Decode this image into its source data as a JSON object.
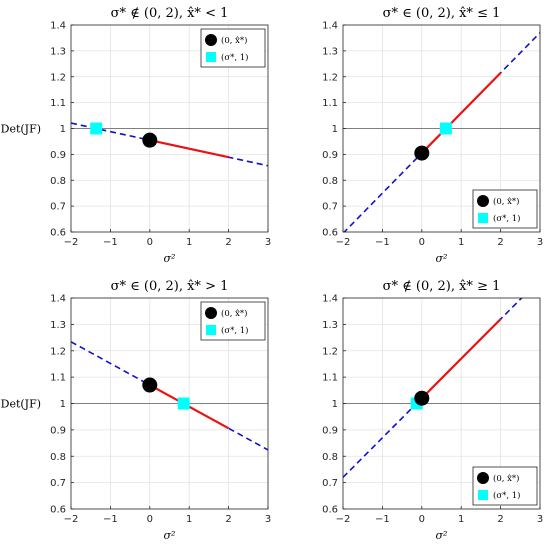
{
  "chart_data": [
    {
      "type": "line",
      "title": "σ* ∉ (0, 2),  x̂* < 1",
      "xlabel": "σ²",
      "ylabel": "Det(JF)",
      "xlim": [
        -2,
        3
      ],
      "ylim": [
        0.6,
        1.4
      ],
      "xticks": [
        -2,
        -1,
        0,
        1,
        2,
        3
      ],
      "yticks": [
        0.6,
        0.7,
        0.8,
        0.9,
        1,
        1.1,
        1.2,
        1.3,
        1.4
      ],
      "grid": true,
      "reference_line_y": 1,
      "line": {
        "intercept": 0.955,
        "slope": -0.033
      },
      "dashed_range": [
        -2,
        3
      ],
      "solid_range": [
        0,
        2
      ],
      "point_circle": {
        "x": 0,
        "y": 0.955
      },
      "point_square": {
        "x": -1.36,
        "y": 1.0
      },
      "legend_position": "top-right",
      "legend": [
        "(0, x̂*)",
        "(σ*, 1)"
      ]
    },
    {
      "type": "line",
      "title": "σ* ∈ (0, 2),  x̂* ≤ 1",
      "xlabel": "σ²",
      "ylabel": "",
      "xlim": [
        -2,
        3
      ],
      "ylim": [
        0.6,
        1.4
      ],
      "xticks": [
        -2,
        -1,
        0,
        1,
        2,
        3
      ],
      "yticks": [
        0.6,
        0.7,
        0.8,
        0.9,
        1,
        1.1,
        1.2,
        1.3,
        1.4
      ],
      "grid": true,
      "reference_line_y": 1,
      "line": {
        "intercept": 0.905,
        "slope": 0.155
      },
      "dashed_range": [
        -2,
        3
      ],
      "solid_range": [
        0,
        2
      ],
      "point_circle": {
        "x": 0,
        "y": 0.905
      },
      "point_square": {
        "x": 0.61,
        "y": 1.0
      },
      "legend_position": "bottom-right",
      "legend": [
        "(0, x̂*)",
        "(σ*, 1)"
      ]
    },
    {
      "type": "line",
      "title": "σ* ∈ (0, 2),  x̂* > 1",
      "xlabel": "σ²",
      "ylabel": "Det(JF)",
      "xlim": [
        -2,
        3
      ],
      "ylim": [
        0.6,
        1.4
      ],
      "xticks": [
        -2,
        -1,
        0,
        1,
        2,
        3
      ],
      "yticks": [
        0.6,
        0.7,
        0.8,
        0.9,
        1,
        1.1,
        1.2,
        1.3,
        1.4
      ],
      "grid": true,
      "reference_line_y": 1,
      "line": {
        "intercept": 1.07,
        "slope": -0.082
      },
      "dashed_range": [
        -2,
        3
      ],
      "solid_range": [
        0,
        2
      ],
      "point_circle": {
        "x": 0,
        "y": 1.07
      },
      "point_square": {
        "x": 0.86,
        "y": 1.0
      },
      "legend_position": "top-right",
      "legend": [
        "(0, x̂*)",
        "(σ*, 1)"
      ]
    },
    {
      "type": "line",
      "title": "σ* ∉ (0, 2),  x̂* ≥ 1",
      "xlabel": "σ²",
      "ylabel": "",
      "xlim": [
        -2,
        3
      ],
      "ylim": [
        0.6,
        1.4
      ],
      "xticks": [
        -2,
        -1,
        0,
        1,
        2,
        3
      ],
      "yticks": [
        0.6,
        0.7,
        0.8,
        0.9,
        1,
        1.1,
        1.2,
        1.3,
        1.4
      ],
      "grid": true,
      "reference_line_y": 1,
      "line": {
        "intercept": 1.02,
        "slope": 0.15
      },
      "dashed_range": [
        -2,
        3
      ],
      "solid_range": [
        0,
        2
      ],
      "point_circle": {
        "x": 0,
        "y": 1.02
      },
      "point_square": {
        "x": -0.13,
        "y": 1.0
      },
      "legend_position": "bottom-right",
      "legend": [
        "(0, x̂*)",
        "(σ*, 1)"
      ]
    }
  ],
  "colors": {
    "dashed_line": "#1010d0",
    "solid_line": "#ee1111",
    "circle": "#000000",
    "square": "#00ffff",
    "reference_line": "#808080",
    "grid": "#e3e3e3",
    "axes": "#262626"
  }
}
